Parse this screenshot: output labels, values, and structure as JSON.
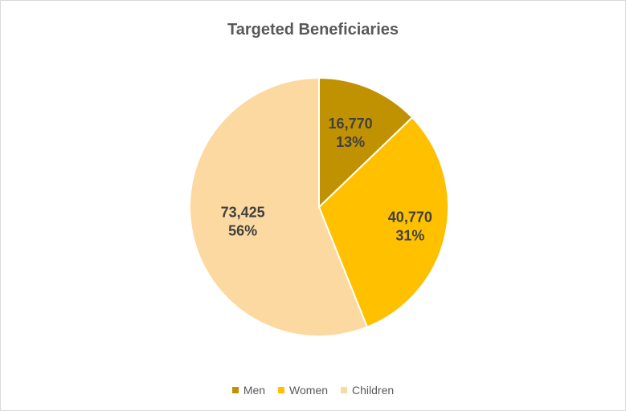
{
  "chart_data": {
    "type": "pie",
    "title": "Targeted Beneficiaries",
    "categories": [
      "Men",
      "Women",
      "Children"
    ],
    "values": [
      16770,
      40770,
      73425
    ],
    "value_labels": [
      "16,770",
      "40,770",
      "73,425"
    ],
    "percent_labels": [
      "13%",
      "31%",
      "56%"
    ],
    "colors": [
      "#c09100",
      "#ffc000",
      "#fcd9a0"
    ],
    "legend_position": "bottom",
    "start_angle_degrees": 0,
    "direction": "clockwise"
  }
}
